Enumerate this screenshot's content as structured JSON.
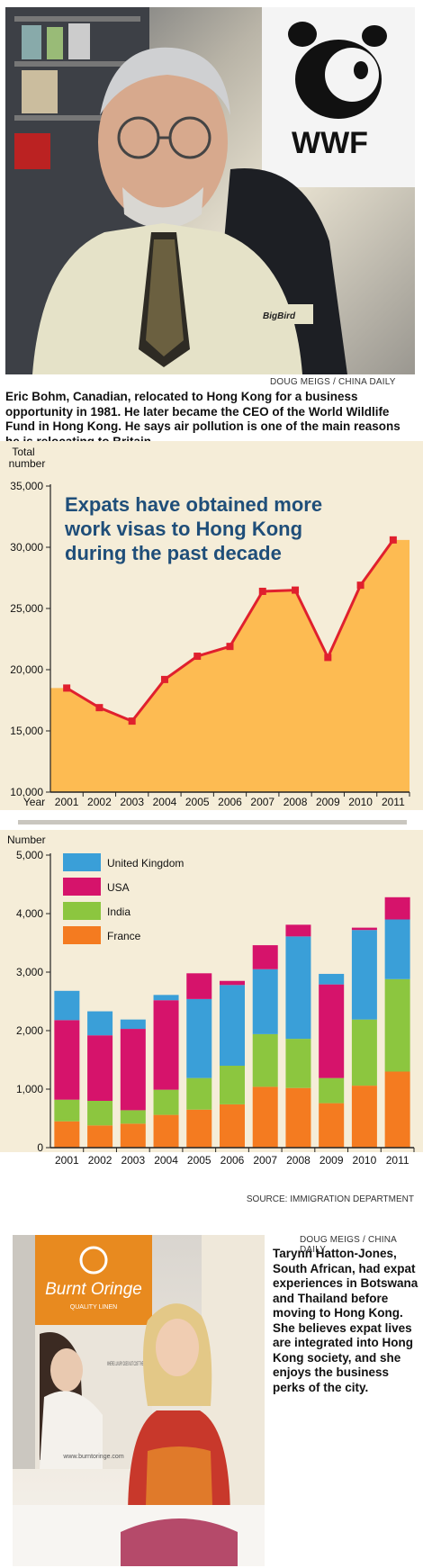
{
  "photo1": {
    "credit": "DOUG MEIGS / CHINA DAILY",
    "logo_text": "WWF",
    "shirt_text": "BigBird"
  },
  "caption1": "Eric Bohm, Canadian, relocated to Hong Kong for a business opportunity in 1981. He later became the CEO of the World Wildlife Fund in Hong Kong. He says air pollution is one of the main reasons he is relocating to Britain.",
  "chart_data": [
    {
      "type": "area",
      "title": "Expats have obtained more work visas to Hong Kong during the past decade",
      "ylabel": "Total number",
      "xlabel": "Year",
      "ylim": [
        10000,
        35000
      ],
      "yticks": [
        "10,000",
        "15,000",
        "20,000",
        "25,000",
        "30,000",
        "35,000"
      ],
      "categories": [
        "2001",
        "2002",
        "2003",
        "2004",
        "2005",
        "2006",
        "2007",
        "2008",
        "2009",
        "2010",
        "2011"
      ],
      "values": [
        18500,
        16900,
        15800,
        19200,
        21100,
        21900,
        26400,
        26500,
        21000,
        26900,
        30600
      ],
      "area_color": "#fdbb52",
      "line_color": "#e0202e"
    },
    {
      "type": "bar",
      "stacked": true,
      "ylabel": "Number",
      "ylim": [
        0,
        5000
      ],
      "yticks": [
        "0",
        "1,000",
        "2,000",
        "3,000",
        "4,000",
        "5,000"
      ],
      "categories": [
        "2001",
        "2002",
        "2003",
        "2004",
        "2005",
        "2006",
        "2007",
        "2008",
        "2009",
        "2010",
        "2011"
      ],
      "series": [
        {
          "name": "France",
          "color": "#f47b20",
          "values": [
            450,
            380,
            410,
            560,
            650,
            740,
            1040,
            1020,
            760,
            1060,
            1300
          ]
        },
        {
          "name": "India",
          "color": "#8cc63f",
          "values": [
            370,
            420,
            230,
            430,
            540,
            660,
            900,
            840,
            430,
            1130,
            1580
          ]
        },
        {
          "name": "USA",
          "color": "#d6136b",
          "values": [
            1360,
            1120,
            1390,
            1530,
            0,
            0,
            0,
            0,
            1600,
            0,
            0
          ]
        },
        {
          "name": "United Kingdom",
          "color": "#3a9fd8",
          "values": [
            500,
            410,
            160,
            90,
            1350,
            1380,
            1110,
            1750,
            180,
            1530,
            1020
          ]
        },
        {
          "name": "USA",
          "color": "#d6136b",
          "values": [
            0,
            0,
            0,
            0,
            440,
            70,
            410,
            200,
            0,
            40,
            380
          ]
        }
      ],
      "legend": [
        "United Kingdom",
        "USA",
        "India",
        "France"
      ],
      "legend_placement": "top-left",
      "source": "SOURCE: IMMIGRATION DEPARTMENT"
    }
  ],
  "photo2": {
    "credit": "DOUG MEIGS / CHINA DAILY",
    "banner_title": "Burnt Oringe",
    "banner_sub": "QUALITY LINEN",
    "banner_tag": "WHERE LUXURY DOES NOT COST THE EARTH",
    "banner_url": "www.burntoringe.com"
  },
  "caption2": "Tarynn Hatton-Jones, South African, had expat experiences in Botswana and Thailand before moving to Hong Kong. She believes expat lives are integrated into Hong Kong society, and she enjoys the business perks of the city."
}
